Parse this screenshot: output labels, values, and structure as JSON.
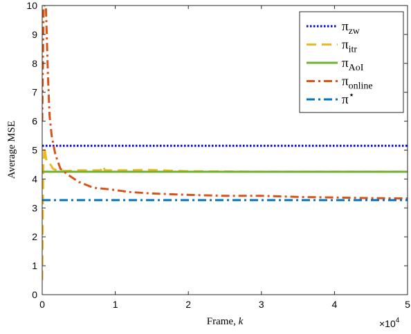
{
  "chart_data": {
    "type": "line",
    "xlabel": "Frame, ",
    "xlabel_var": "k",
    "ylabel": "Average MSE",
    "xlim": [
      0,
      50000
    ],
    "ylim": [
      0,
      10
    ],
    "x_multiplier": {
      "base": "×10",
      "exp": "4"
    },
    "xticks": [
      0,
      1,
      2,
      3,
      4,
      5
    ],
    "yticks": [
      0,
      1,
      2,
      3,
      4,
      5,
      6,
      7,
      8,
      9,
      10
    ],
    "grid": false,
    "legend_position": "top-right",
    "series": [
      {
        "name": "π",
        "sub": "zw",
        "color": "#0000e6",
        "style": "dotted",
        "points": [
          [
            0,
            5.15
          ],
          [
            50000,
            5.15
          ]
        ]
      },
      {
        "name": "π",
        "sub": "itr",
        "color": "#f0b820",
        "style": "dashed",
        "points": [
          [
            0,
            0.5
          ],
          [
            150,
            4.4
          ],
          [
            300,
            5.1
          ],
          [
            600,
            4.6
          ],
          [
            1000,
            4.55
          ],
          [
            1500,
            4.35
          ],
          [
            2000,
            4.3
          ],
          [
            3000,
            4.28
          ],
          [
            5000,
            4.3
          ],
          [
            8000,
            4.3
          ],
          [
            8300,
            4.45
          ],
          [
            8600,
            4.3
          ],
          [
            12000,
            4.3
          ],
          [
            14000,
            4.32
          ],
          [
            20000,
            4.27
          ],
          [
            30000,
            4.25
          ],
          [
            40000,
            4.25
          ],
          [
            50000,
            4.25
          ]
        ]
      },
      {
        "name": "π",
        "sub": "AoI",
        "color": "#70b030",
        "style": "solid",
        "points": [
          [
            0,
            4.25
          ],
          [
            50000,
            4.25
          ]
        ]
      },
      {
        "name": "π",
        "sub": "online",
        "color": "#d95319",
        "style": "dashdot",
        "points": [
          [
            0,
            6.0
          ],
          [
            200,
            10.0
          ],
          [
            500,
            10.0
          ],
          [
            800,
            7.5
          ],
          [
            1000,
            6.2
          ],
          [
            1300,
            5.5
          ],
          [
            1800,
            4.85
          ],
          [
            2500,
            4.35
          ],
          [
            3500,
            4.15
          ],
          [
            5000,
            3.9
          ],
          [
            7000,
            3.7
          ],
          [
            9000,
            3.65
          ],
          [
            12000,
            3.55
          ],
          [
            15000,
            3.5
          ],
          [
            20000,
            3.45
          ],
          [
            25000,
            3.42
          ],
          [
            30000,
            3.42
          ],
          [
            35000,
            3.38
          ],
          [
            40000,
            3.36
          ],
          [
            45000,
            3.34
          ],
          [
            50000,
            3.33
          ]
        ]
      },
      {
        "name": "π",
        "sub": "",
        "sup": "⋆",
        "color": "#0072bd",
        "style": "dashdot",
        "points": [
          [
            0,
            3.27
          ],
          [
            50000,
            3.27
          ]
        ]
      }
    ]
  }
}
